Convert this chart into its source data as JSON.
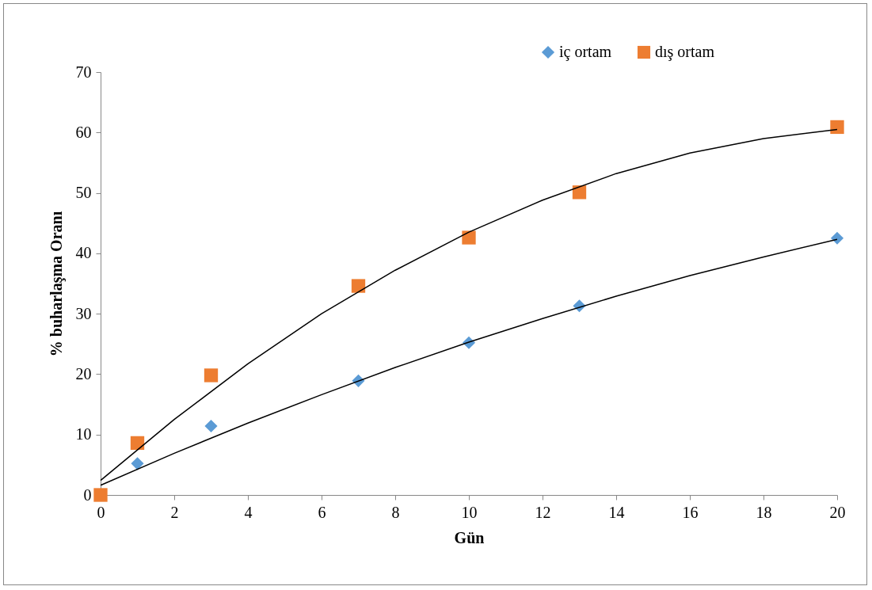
{
  "chart_data": {
    "type": "scatter",
    "xlabel": "Gün",
    "ylabel": "% buharlaşma Oranı",
    "xlim": [
      0,
      20
    ],
    "xticks": [
      0,
      2,
      4,
      6,
      8,
      10,
      12,
      14,
      16,
      18,
      20
    ],
    "ylim": [
      0,
      70
    ],
    "yticks": [
      0,
      10,
      20,
      30,
      40,
      50,
      60,
      70
    ],
    "grid": false,
    "legend": "top right",
    "series": [
      {
        "name": "iç ortam",
        "marker": "diamond",
        "color": "#5b9bd5",
        "x": [
          1,
          3,
          7,
          10,
          13,
          20
        ],
        "values": [
          5.2,
          11.4,
          18.9,
          25.2,
          31.3,
          42.5
        ]
      },
      {
        "name": "dış ortam",
        "marker": "square",
        "color": "#ed7d31",
        "x": [
          0,
          1,
          3,
          7,
          10,
          13,
          20
        ],
        "values": [
          0,
          8.6,
          19.8,
          34.6,
          42.6,
          50.1,
          60.9
        ]
      },
      {
        "type": "line",
        "marker": "none",
        "line_style": "solid",
        "color": "#000000",
        "x": [
          0,
          2,
          4,
          6,
          8,
          10,
          12,
          14,
          16,
          18,
          20
        ],
        "values": [
          1.6,
          6.9,
          11.9,
          16.6,
          21.1,
          25.3,
          29.2,
          32.9,
          36.3,
          39.4,
          42.3
        ]
      },
      {
        "type": "line",
        "marker": "none",
        "line_style": "solid",
        "color": "#000000",
        "x": [
          0,
          2,
          4,
          6,
          8,
          10,
          12,
          14,
          16,
          18,
          20
        ],
        "values": [
          2.4,
          12.5,
          21.7,
          30.0,
          37.2,
          43.5,
          48.8,
          53.2,
          56.6,
          59.0,
          60.5
        ]
      }
    ]
  }
}
